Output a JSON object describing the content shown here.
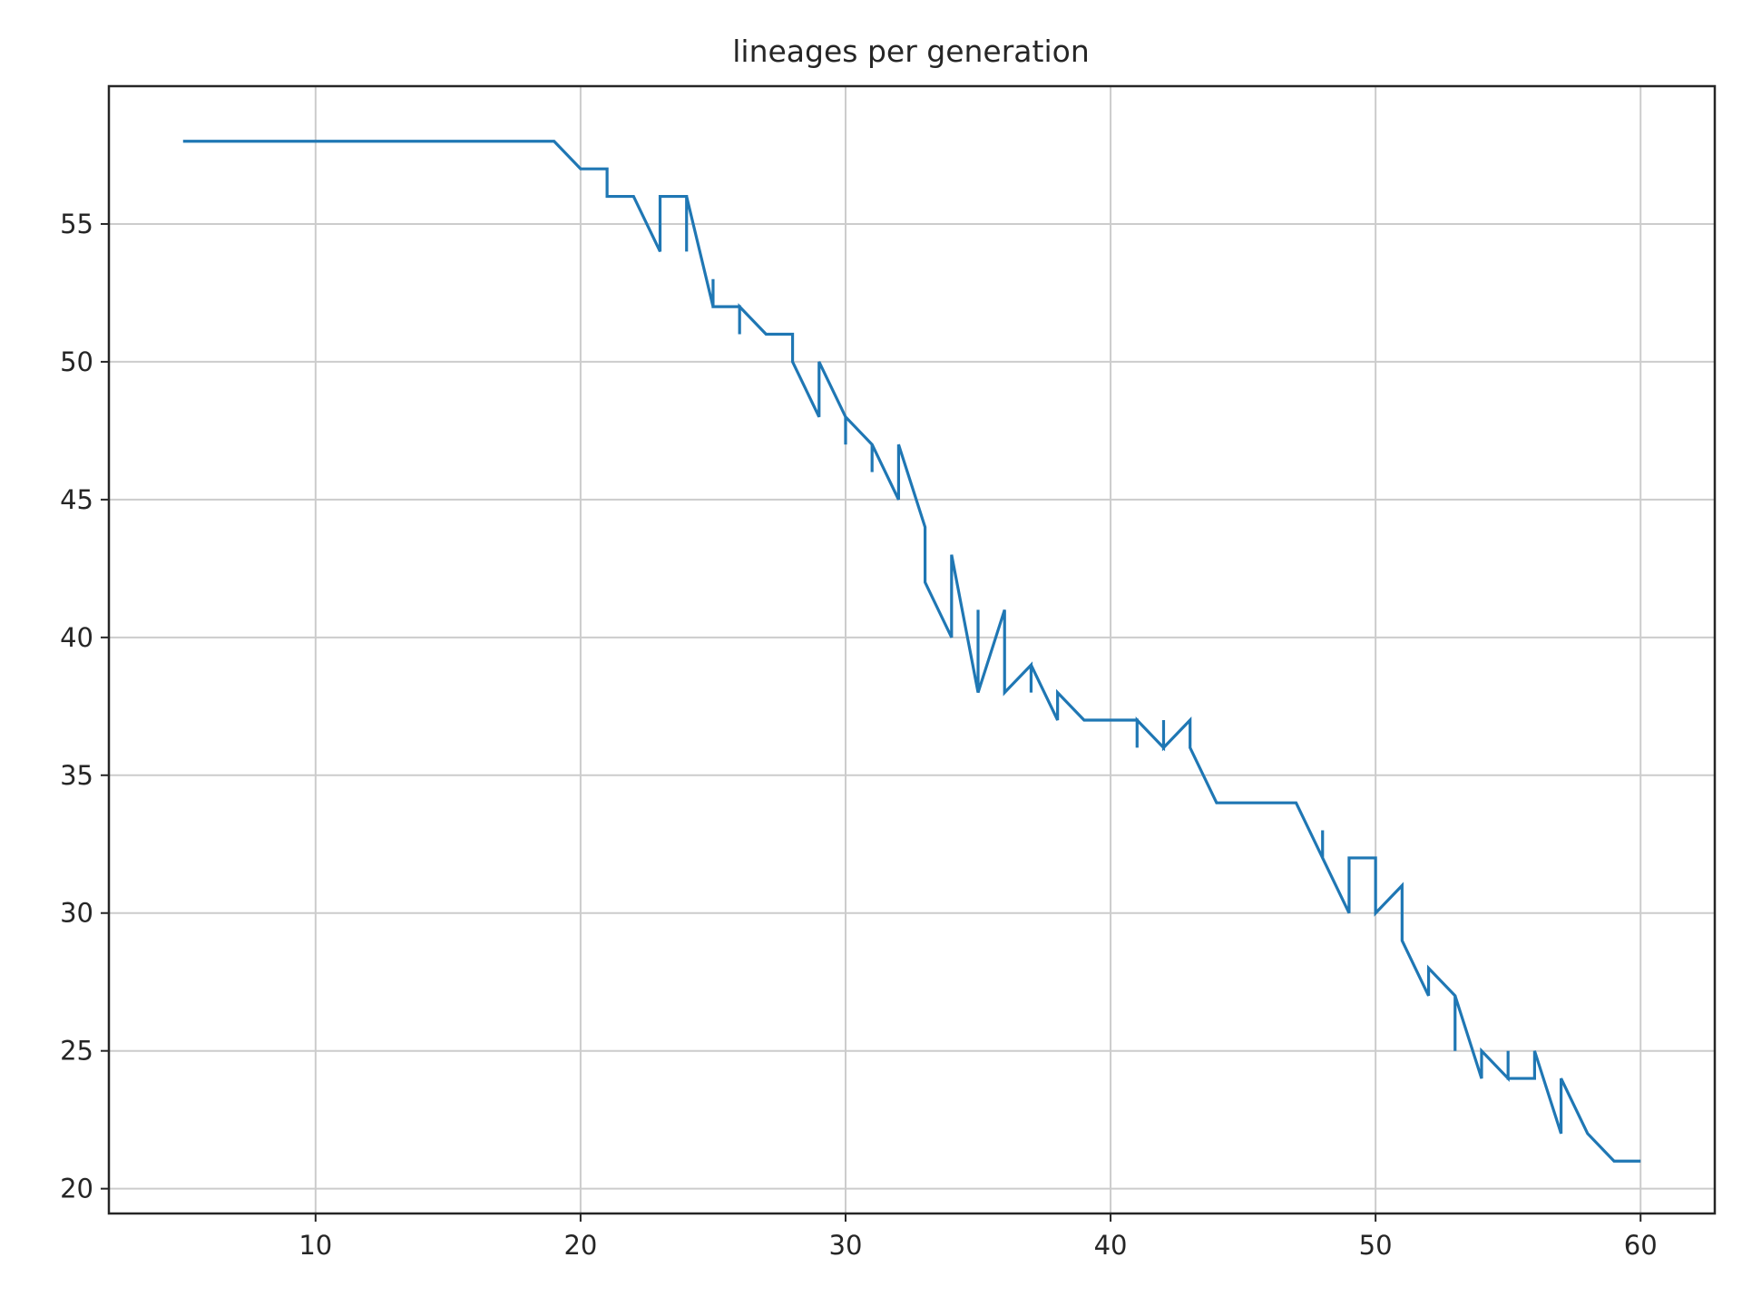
{
  "chart_data": {
    "type": "line",
    "title": "lineages per generation",
    "xlabel": "",
    "ylabel": "",
    "xlim": [
      2.2,
      62.8
    ],
    "ylim": [
      19.1,
      60.0
    ],
    "xticks": [
      10,
      20,
      30,
      40,
      50,
      60
    ],
    "yticks": [
      20,
      25,
      30,
      35,
      40,
      45,
      50,
      55
    ],
    "grid": true,
    "legend": "none",
    "series": [
      {
        "color": "#1f77b4",
        "points": [
          [
            5,
            58
          ],
          [
            19,
            58
          ],
          [
            20,
            57
          ],
          [
            21,
            57
          ],
          [
            21,
            56
          ],
          [
            22,
            56
          ],
          [
            23,
            54
          ],
          [
            23,
            56
          ],
          [
            24,
            56
          ],
          [
            24,
            54
          ],
          [
            24,
            56
          ],
          [
            25,
            52
          ],
          [
            25,
            53
          ],
          [
            25,
            52
          ],
          [
            26,
            52
          ],
          [
            26,
            51
          ],
          [
            26,
            52
          ],
          [
            27,
            51
          ],
          [
            28,
            51
          ],
          [
            28,
            50
          ],
          [
            29,
            48
          ],
          [
            29,
            50
          ],
          [
            30,
            48
          ],
          [
            30,
            47
          ],
          [
            30,
            48
          ],
          [
            31,
            47
          ],
          [
            31,
            46
          ],
          [
            31,
            47
          ],
          [
            32,
            45
          ],
          [
            32,
            47
          ],
          [
            33,
            44
          ],
          [
            33,
            42
          ],
          [
            34,
            40
          ],
          [
            34,
            43
          ],
          [
            35,
            38
          ],
          [
            35,
            41
          ],
          [
            35,
            38
          ],
          [
            36,
            41
          ],
          [
            36,
            38
          ],
          [
            37,
            39
          ],
          [
            37,
            38
          ],
          [
            37,
            39
          ],
          [
            38,
            37
          ],
          [
            38,
            38
          ],
          [
            39,
            37
          ],
          [
            41,
            37
          ],
          [
            41,
            36
          ],
          [
            41,
            37
          ],
          [
            42,
            36
          ],
          [
            42,
            37
          ],
          [
            42,
            36
          ],
          [
            43,
            37
          ],
          [
            43,
            36
          ],
          [
            44,
            34
          ],
          [
            47,
            34
          ],
          [
            48,
            32
          ],
          [
            48,
            33
          ],
          [
            48,
            32
          ],
          [
            49,
            30
          ],
          [
            49,
            32
          ],
          [
            50,
            32
          ],
          [
            50,
            30
          ],
          [
            51,
            31
          ],
          [
            51,
            29
          ],
          [
            52,
            27
          ],
          [
            52,
            28
          ],
          [
            53,
            27
          ],
          [
            53,
            25
          ],
          [
            53,
            27
          ],
          [
            54,
            24
          ],
          [
            54,
            25
          ],
          [
            55,
            24
          ],
          [
            55,
            25
          ],
          [
            55,
            24
          ],
          [
            56,
            24
          ],
          [
            56,
            25
          ],
          [
            57,
            22
          ],
          [
            57,
            24
          ],
          [
            58,
            22
          ],
          [
            59,
            21
          ],
          [
            60,
            21
          ]
        ]
      }
    ]
  }
}
